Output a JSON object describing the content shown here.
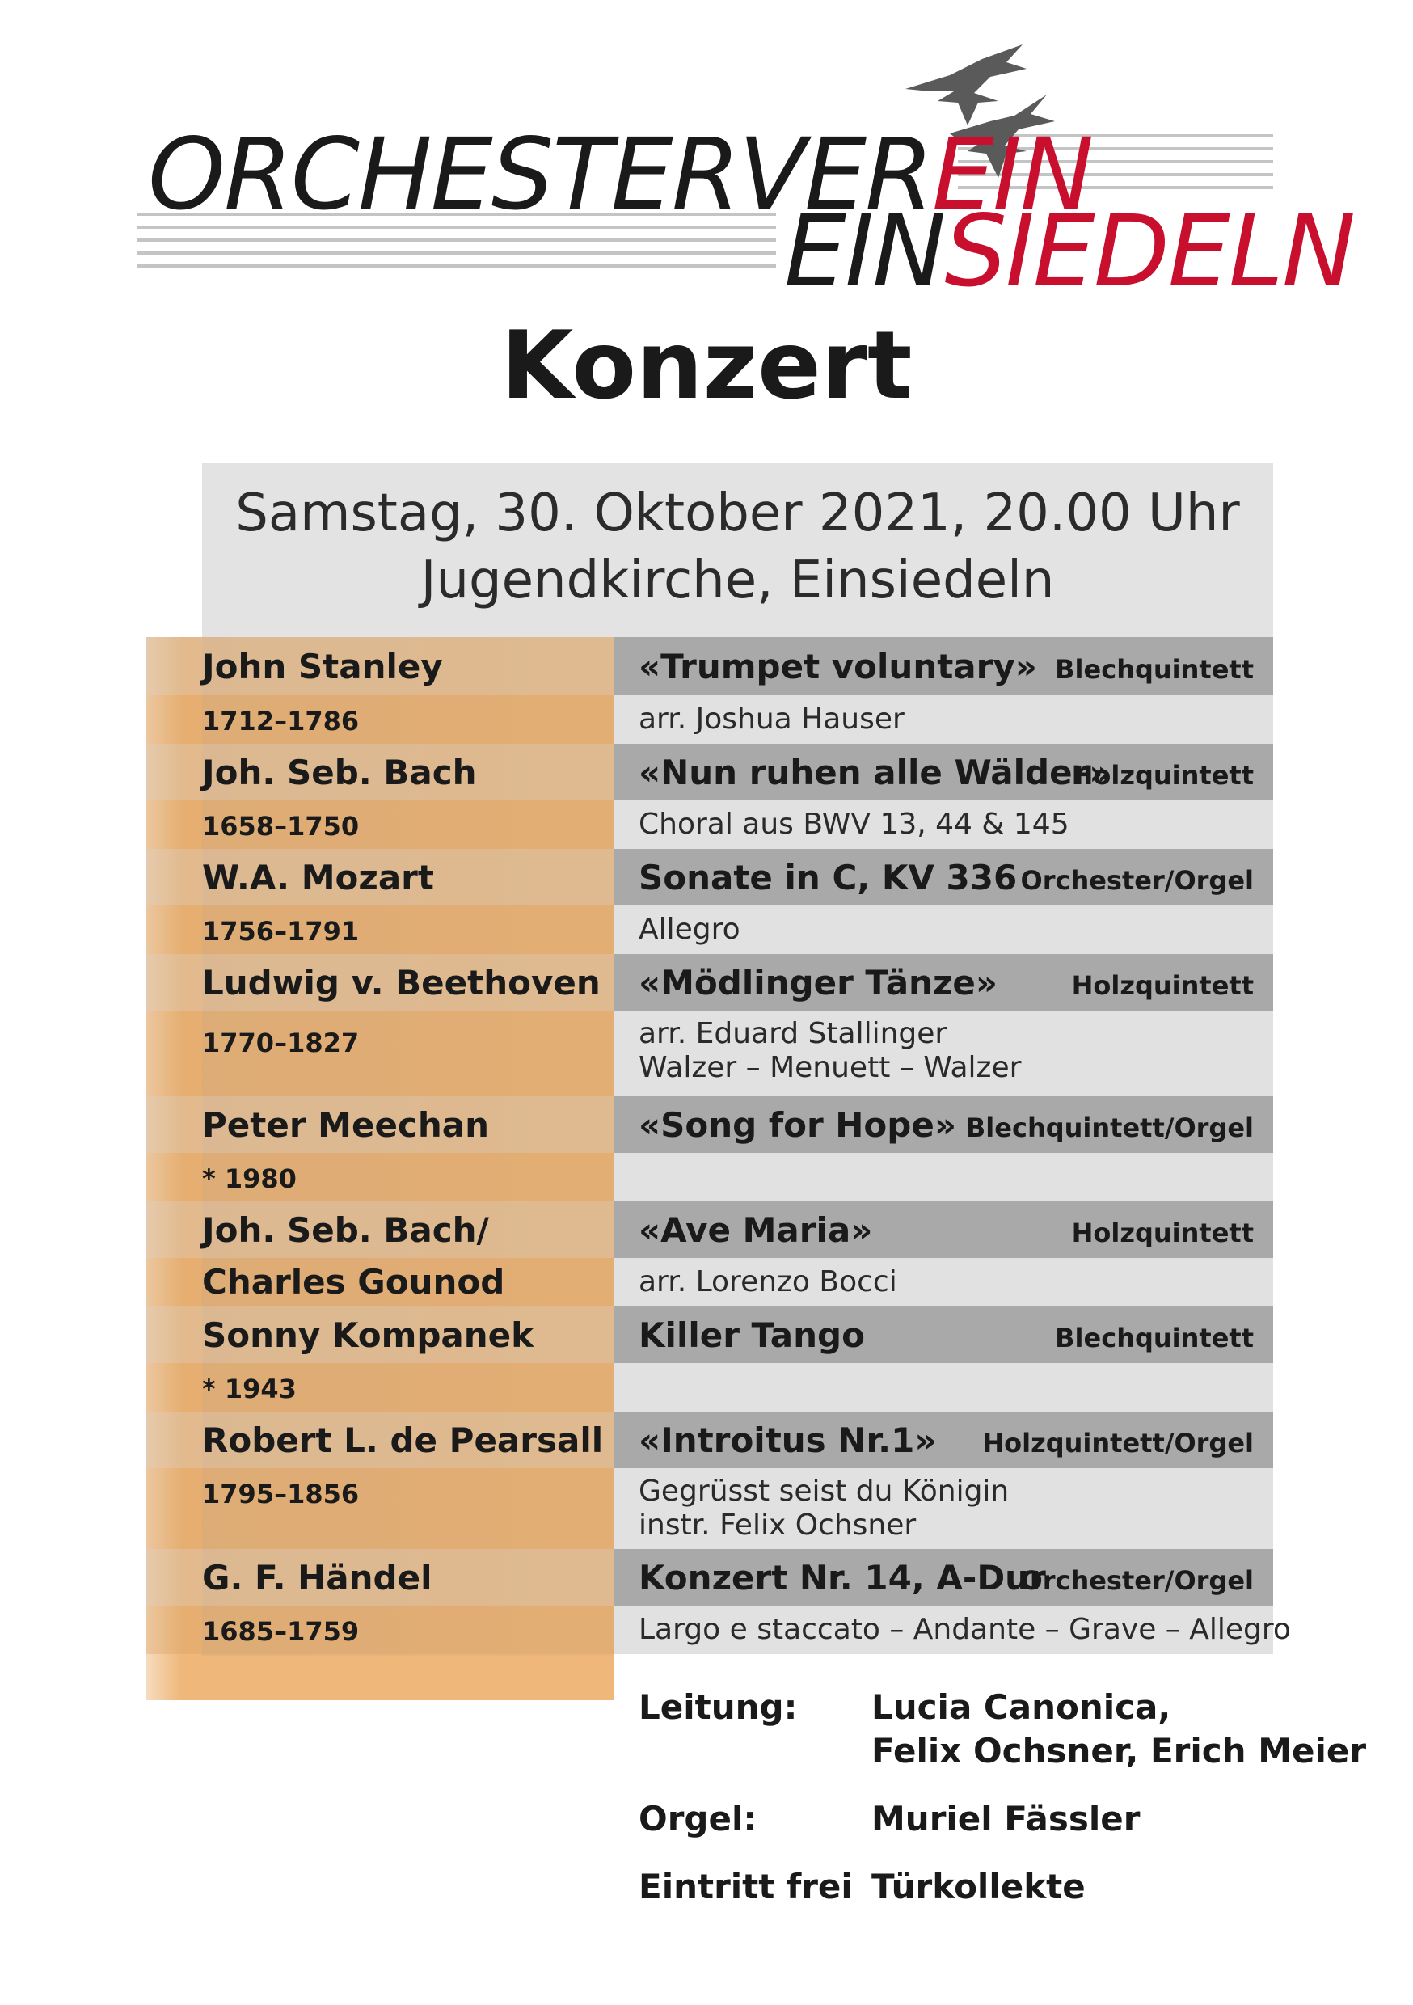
{
  "header": {
    "logo_line1_black": "ORCHESTERVER",
    "logo_line1_red": "EIN",
    "logo_line2_black": "EIN",
    "logo_line2_red": "SIEDELN",
    "red_color": "#c8102e"
  },
  "title": "Konzert",
  "event": {
    "date_time": "Samstag, 30. Oktober 2021, 20.00 Uhr",
    "venue": "Jugendkirche, Einsiedeln"
  },
  "program": [
    {
      "composer": "John Stanley",
      "years": "1712–1786",
      "piece": "«Trumpet voluntary»",
      "ensemble": "Blechquintett",
      "detail": "arr. Joshua Hauser"
    },
    {
      "composer": "Joh. Seb. Bach",
      "years": "1658–1750",
      "piece": "«Nun ruhen alle Wälder»",
      "ensemble": "Holzquintett",
      "detail": "Choral aus BWV 13, 44 & 145"
    },
    {
      "composer": "W.A. Mozart",
      "years": "1756–1791",
      "piece": "Sonate in C, KV 336",
      "ensemble": "Orchester/Orgel",
      "detail": "Allegro"
    },
    {
      "composer": "Ludwig v. Beethoven",
      "years": "1770–1827",
      "piece": "«Mödlinger Tänze»",
      "ensemble": "Holzquintett",
      "detail": "arr. Eduard Stallinger",
      "detail2": "Walzer – Menuett – Walzer"
    },
    {
      "composer": "Peter Meechan",
      "years": "* 1980",
      "piece": "«Song for Hope»",
      "ensemble": "Blechquintett/Orgel",
      "detail": ""
    },
    {
      "composer": "Joh. Seb. Bach/",
      "years": "Charles Gounod",
      "piece": "«Ave Maria»",
      "ensemble": "Holzquintett",
      "detail": "arr. Lorenzo Bocci"
    },
    {
      "composer": "Sonny Kompanek",
      "years": "* 1943",
      "piece": "Killer Tango",
      "ensemble": "Blechquintett",
      "detail": ""
    },
    {
      "composer": "Robert L. de Pearsall",
      "years": "1795–1856",
      "piece": "«Introitus Nr.1»",
      "ensemble": "Holzquintett/Orgel",
      "detail": "Gegrüsst seist du Königin",
      "detail2": "instr. Felix Ochsner"
    },
    {
      "composer": "G. F. Händel",
      "years": "1685–1759",
      "piece": "Konzert Nr. 14, A-Dur",
      "ensemble": "Orchester/Orgel",
      "detail": "Largo e staccato – Andante – Grave – Allegro"
    }
  ],
  "credits": {
    "leitung_label": "Leitung:",
    "leitung_value1": "Lucia Canonica,",
    "leitung_value2": "Felix Ochsner, Erich Meier",
    "orgel_label": "Orgel:",
    "orgel_value": "Muriel Fässler",
    "eintritt_label": "Eintritt frei",
    "eintritt_value": "Türkollekte"
  }
}
